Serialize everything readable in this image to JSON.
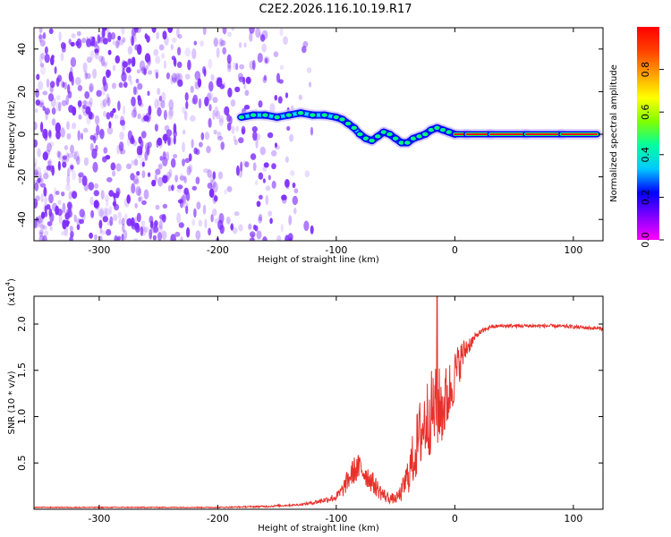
{
  "title": "C2E2.2026.116.10.19.R17",
  "colors": {
    "cloud": "#7f2dff",
    "snr_line": "#e8302a",
    "axis": "#000000",
    "colorbar": [
      "#ff00ff",
      "#8000ff",
      "#0000ff",
      "#00c8ff",
      "#00ffa0",
      "#80ff00",
      "#ffff00",
      "#ffa000",
      "#ff4000",
      "#ff0000"
    ]
  },
  "chart_data": [
    {
      "type": "heatmap",
      "name": "spectrogram",
      "xlabel": "Height of straight line (km)",
      "ylabel": "Frequency (Hz)",
      "xlim": [
        -355,
        125
      ],
      "ylim": [
        -50,
        50
      ],
      "xticks": [
        -300,
        -200,
        -100,
        0,
        100
      ],
      "xtick_labels": [
        "-300",
        "-200",
        "-100",
        "0",
        "100"
      ],
      "yticks": [
        -40,
        -20,
        0,
        20,
        40
      ],
      "ytick_labels": [
        "-40",
        "-20",
        "0",
        "20",
        "40"
      ],
      "noise_region_x": [
        -355,
        -120
      ],
      "signal_trace": {
        "x": [
          -180,
          -170,
          -160,
          -150,
          -140,
          -130,
          -120,
          -110,
          -100,
          -95,
          -90,
          -85,
          -80,
          -75,
          -70,
          -65,
          -60,
          -55,
          -50,
          -45,
          -40,
          -35,
          -30,
          -25,
          -20,
          -15,
          -10,
          -5,
          0,
          10,
          30,
          60,
          90,
          120
        ],
        "y": [
          8,
          9,
          9,
          8,
          9,
          10,
          9,
          9,
          8,
          7,
          5,
          3,
          0,
          -2,
          -3,
          -1,
          1,
          0,
          -2,
          -4,
          -4,
          -2,
          -1,
          0,
          2,
          3,
          2,
          1,
          0,
          0,
          0,
          0,
          0,
          0
        ]
      },
      "colorbar": {
        "label": "Normalized spectral amplitude",
        "ticks": [
          0.0,
          0.2,
          0.4,
          0.6,
          0.8
        ],
        "tick_labels": [
          "0.0",
          "0.2",
          "0.4",
          "0.6",
          "0.8"
        ],
        "range": [
          0,
          1
        ]
      }
    },
    {
      "type": "line",
      "name": "snr",
      "xlabel": "Height of straight line (km)",
      "ylabel": "SNR (10 * v/v)",
      "y_multiplier_label": "(x10",
      "y_multiplier_exp": "4",
      "y_multiplier_close": ")",
      "xlim": [
        -355,
        125
      ],
      "ylim": [
        0,
        2.3
      ],
      "xticks": [
        -300,
        -200,
        -100,
        0,
        100
      ],
      "xtick_labels": [
        "-300",
        "-200",
        "-100",
        "0",
        "100"
      ],
      "yticks": [
        0.5,
        1.0,
        1.5,
        2.0
      ],
      "ytick_labels": [
        "0.5",
        "1.0",
        "1.5",
        "2.0"
      ],
      "series": [
        {
          "name": "SNR",
          "x": [
            -355,
            -300,
            -250,
            -200,
            -160,
            -130,
            -120,
            -110,
            -100,
            -95,
            -90,
            -85,
            -80,
            -75,
            -70,
            -65,
            -60,
            -55,
            -50,
            -45,
            -40,
            -35,
            -30,
            -25,
            -20,
            -15,
            -10,
            -5,
            0,
            5,
            10,
            15,
            20,
            30,
            40,
            60,
            80,
            100,
            110,
            125
          ],
          "y": [
            0.02,
            0.02,
            0.02,
            0.02,
            0.03,
            0.05,
            0.07,
            0.1,
            0.13,
            0.2,
            0.32,
            0.42,
            0.45,
            0.38,
            0.3,
            0.22,
            0.15,
            0.12,
            0.11,
            0.18,
            0.35,
            0.55,
            0.78,
            0.95,
            1.05,
            1.1,
            1.1,
            1.25,
            1.45,
            1.62,
            1.75,
            1.82,
            1.9,
            1.97,
            1.98,
            1.98,
            1.98,
            1.97,
            1.96,
            1.95
          ],
          "noise_amplitude": [
            0.005,
            0.005,
            0.005,
            0.005,
            0.01,
            0.01,
            0.02,
            0.03,
            0.05,
            0.08,
            0.12,
            0.15,
            0.15,
            0.14,
            0.12,
            0.1,
            0.08,
            0.06,
            0.05,
            0.1,
            0.2,
            0.3,
            0.4,
            0.45,
            0.45,
            0.45,
            0.42,
            0.35,
            0.28,
            0.2,
            0.12,
            0.06,
            0.03,
            0.02,
            0.02,
            0.02,
            0.02,
            0.02,
            0.02,
            0.02
          ],
          "spike": {
            "x": -15,
            "y": 2.3
          }
        }
      ]
    }
  ]
}
